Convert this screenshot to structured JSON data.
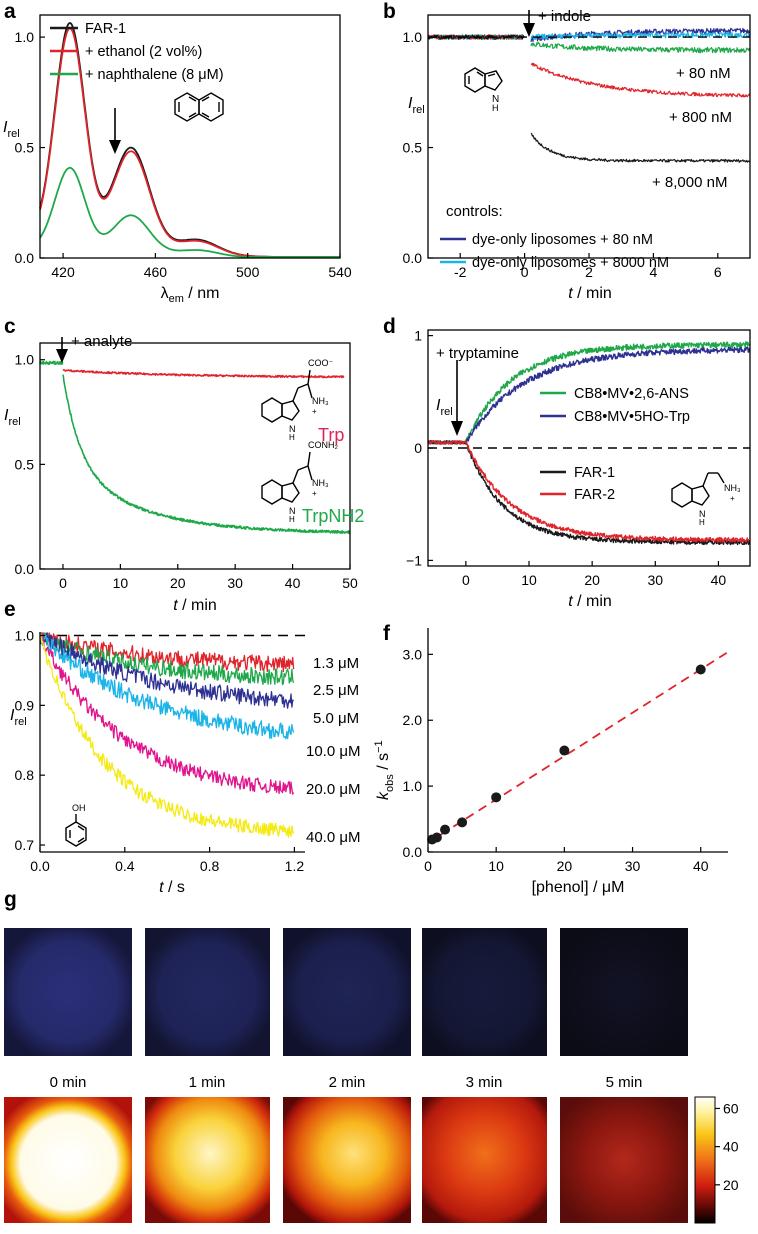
{
  "colors": {
    "black": "#1a1a1a",
    "red": "#e0242c",
    "green": "#1fa84a",
    "navy": "#2e3192",
    "cyan": "#1cb4e8",
    "magenta": "#e0148c",
    "yellow": "#f5ea14",
    "fit": "#e0242c",
    "mol_trp": "#e0245a",
    "mol_trpnh2": "#1fa84a"
  },
  "chart_data": [
    {
      "id": "a",
      "panel_label": "a",
      "type": "line",
      "xlabel": "λ",
      "xlabel_sub": "em",
      "xlabel_unit": " / nm",
      "ylabel": "I",
      "ylabel_sub": "rel",
      "xlim": [
        410,
        540
      ],
      "ylim": [
        0,
        1.1
      ],
      "xticks": [
        {
          "v": 420,
          "t": "420"
        },
        {
          "v": 460,
          "t": "460"
        },
        {
          "v": 500,
          "t": "500"
        },
        {
          "v": 540,
          "t": "540"
        }
      ],
      "yticks": [
        {
          "v": 0,
          "t": "0.0"
        },
        {
          "v": 0.5,
          "t": "0.5"
        },
        {
          "v": 1.0,
          "t": "1.0"
        }
      ],
      "series": [
        {
          "name": "FAR-1",
          "color": "black",
          "peaks": [
            {
              "c": 423,
              "w": 6.5,
              "h": 1.0
            },
            {
              "c": 449.5,
              "w": 8,
              "h": 0.47
            },
            {
              "c": 478,
              "w": 9,
              "h": 0.07
            }
          ],
          "base": 0.09
        },
        {
          "name": "+ ethanol (2 vol%)",
          "color": "red",
          "peaks": [
            {
              "c": 423,
              "w": 6.5,
              "h": 0.98
            },
            {
              "c": 449.5,
              "w": 8,
              "h": 0.455
            },
            {
              "c": 478,
              "w": 9,
              "h": 0.065
            }
          ],
          "base": 0.085
        },
        {
          "name": "+ naphthalene (8 μM)",
          "color": "green",
          "peaks": [
            {
              "c": 423,
              "w": 6.5,
              "h": 0.38
            },
            {
              "c": 449.5,
              "w": 8,
              "h": 0.18
            },
            {
              "c": 478,
              "w": 9,
              "h": 0.03
            }
          ],
          "base": 0.04
        }
      ]
    },
    {
      "id": "b",
      "panel_label": "b",
      "type": "line",
      "xlabel": "t",
      "xlabel_unit": " / min",
      "ylabel": "I",
      "ylabel_sub": "rel",
      "xlim": [
        -3,
        7
      ],
      "ylim": [
        0,
        1.1
      ],
      "xticks": [
        {
          "v": -2,
          "t": "-2"
        },
        {
          "v": 0,
          "t": "0"
        },
        {
          "v": 2,
          "t": "2"
        },
        {
          "v": 4,
          "t": "4"
        },
        {
          "v": 6,
          "t": "6"
        }
      ],
      "yticks": [
        {
          "v": 0,
          "t": "0.0"
        },
        {
          "v": 0.5,
          "t": "0.5"
        },
        {
          "v": 1.0,
          "t": "1.0"
        }
      ],
      "dashed_y": 1.0,
      "annotation": "+ indole",
      "series": [
        {
          "name": "dye-only liposomes + 80 nM",
          "color": "navy",
          "start": 0.99,
          "end": 1.03,
          "k": 0.5,
          "noise": 0.012
        },
        {
          "name": "dye-only liposomes + 8000 nM",
          "color": "cyan",
          "start": 1.0,
          "end": 1.01,
          "k": 0.5,
          "noise": 0.012
        },
        {
          "name": "+ 80 nM",
          "color": "green",
          "start": 0.97,
          "end": 0.94,
          "k": 0.6,
          "noise": 0.012
        },
        {
          "name": "+ 800 nM",
          "color": "red",
          "start": 0.88,
          "end": 0.73,
          "k": 0.5,
          "noise": 0.008
        },
        {
          "name": "+ 8,000 nM",
          "color": "black",
          "start": 0.56,
          "end": 0.44,
          "k": 1.6,
          "noise": 0.006
        }
      ],
      "controls_title": "controls:"
    },
    {
      "id": "c",
      "panel_label": "c",
      "type": "line",
      "xlabel": "t",
      "xlabel_unit": " / min",
      "ylabel": "I",
      "ylabel_sub": "rel",
      "xlim": [
        -4,
        50
      ],
      "ylim": [
        0,
        1.08
      ],
      "xticks": [
        {
          "v": 0,
          "t": "0"
        },
        {
          "v": 10,
          "t": "10"
        },
        {
          "v": 20,
          "t": "20"
        },
        {
          "v": 30,
          "t": "30"
        },
        {
          "v": 40,
          "t": "40"
        },
        {
          "v": 50,
          "t": "50"
        }
      ],
      "yticks": [
        {
          "v": 0,
          "t": "0.0"
        },
        {
          "v": 0.5,
          "t": "0.5"
        },
        {
          "v": 1.0,
          "t": "1.0"
        }
      ],
      "annotation": "+ analyte",
      "series": [
        {
          "name": "Trp",
          "color": "red",
          "start": 0.95,
          "end": 0.915,
          "k": 0.05,
          "noise": 0.004
        },
        {
          "name": "TrpNH2",
          "color": "green",
          "start": 0.93,
          "end": 0.17,
          "k": 0.08,
          "noise": 0.006
        }
      ]
    },
    {
      "id": "d",
      "panel_label": "d",
      "type": "line",
      "xlabel": "t",
      "xlabel_unit": " / min",
      "ylabel": "I",
      "ylabel_sub": "rel",
      "xlim": [
        -6,
        45
      ],
      "ylim": [
        -1.05,
        1.05
      ],
      "xticks": [
        {
          "v": 0,
          "t": "0"
        },
        {
          "v": 10,
          "t": "10"
        },
        {
          "v": 20,
          "t": "20"
        },
        {
          "v": 30,
          "t": "30"
        },
        {
          "v": 40,
          "t": "40"
        }
      ],
      "yticks": [
        {
          "v": -1,
          "t": "−1"
        },
        {
          "v": 0,
          "t": "0"
        },
        {
          "v": 1,
          "t": "1"
        }
      ],
      "dashed_y": 0,
      "annotation": "+ tryptamine",
      "series": [
        {
          "name": "CB8•MV•2,6-ANS",
          "color": "green",
          "end": 0.92,
          "k": 0.14,
          "noise": 0.025
        },
        {
          "name": "CB8•MV•5HO-Trp",
          "color": "navy",
          "end": 0.88,
          "k": 0.11,
          "noise": 0.025
        },
        {
          "name": "FAR-1",
          "color": "black",
          "end": -0.84,
          "k": 0.17,
          "noise": 0.02
        },
        {
          "name": "FAR-2",
          "color": "red",
          "end": -0.82,
          "k": 0.14,
          "noise": 0.02
        }
      ]
    },
    {
      "id": "e",
      "panel_label": "e",
      "type": "line",
      "xlabel": "t",
      "xlabel_unit": " / s",
      "ylabel": "I",
      "ylabel_sub": "rel",
      "xlim": [
        0,
        1.25
      ],
      "ylim": [
        0.69,
        1.005
      ],
      "xticks": [
        {
          "v": 0,
          "t": "0.0"
        },
        {
          "v": 0.4,
          "t": "0.4"
        },
        {
          "v": 0.8,
          "t": "0.8"
        },
        {
          "v": 1.2,
          "t": "1.2"
        }
      ],
      "yticks": [
        {
          "v": 0.7,
          "t": "0.7"
        },
        {
          "v": 0.8,
          "t": "0.8"
        },
        {
          "v": 0.9,
          "t": "0.9"
        },
        {
          "v": 1.0,
          "t": "1.0"
        }
      ],
      "dashed_y": 1.0,
      "series": [
        {
          "name": "1.3 μM",
          "color": "red",
          "end": 0.955,
          "k": 2.0,
          "noise": 0.012
        },
        {
          "name": "2.5 μM",
          "color": "green",
          "end": 0.935,
          "k": 2.2,
          "noise": 0.012
        },
        {
          "name": "5.0 μM",
          "color": "navy",
          "end": 0.895,
          "k": 1.8,
          "noise": 0.012
        },
        {
          "name": "10.0 μM",
          "color": "cyan",
          "end": 0.845,
          "k": 1.9,
          "noise": 0.012
        },
        {
          "name": "20.0 μM",
          "color": "magenta",
          "end": 0.77,
          "k": 2.6,
          "noise": 0.01
        },
        {
          "name": "40.0 μM",
          "color": "yellow",
          "end": 0.715,
          "k": 3.3,
          "noise": 0.01
        }
      ]
    },
    {
      "id": "f",
      "panel_label": "f",
      "type": "scatter",
      "xlabel": "[phenol] / μM",
      "ylabel": "k",
      "ylabel_sub": "obs",
      "ylabel_unit": " / s",
      "ylabel_sup": "−1",
      "xlim": [
        0,
        44
      ],
      "ylim": [
        0,
        3.4
      ],
      "xticks": [
        {
          "v": 0,
          "t": "0"
        },
        {
          "v": 10,
          "t": "10"
        },
        {
          "v": 20,
          "t": "20"
        },
        {
          "v": 30,
          "t": "30"
        },
        {
          "v": 40,
          "t": "40"
        }
      ],
      "yticks": [
        {
          "v": 0,
          "t": "0.0"
        },
        {
          "v": 1,
          "t": "1.0"
        },
        {
          "v": 2,
          "t": "2.0"
        },
        {
          "v": 3,
          "t": "3.0"
        }
      ],
      "points": [
        {
          "x": 0.6,
          "y": 0.19
        },
        {
          "x": 1.3,
          "y": 0.22
        },
        {
          "x": 2.5,
          "y": 0.34
        },
        {
          "x": 5.0,
          "y": 0.45
        },
        {
          "x": 10,
          "y": 0.83
        },
        {
          "x": 20,
          "y": 1.54
        },
        {
          "x": 40,
          "y": 2.77
        }
      ],
      "fit": {
        "slope": 0.0658,
        "intercept": 0.14
      }
    }
  ],
  "panel_g": {
    "label": "g",
    "times": [
      "0 min",
      "1 min",
      "2 min",
      "3 min",
      "5 min"
    ],
    "colorbar_ticks": [
      {
        "v": 20,
        "t": "20"
      },
      {
        "v": 40,
        "t": "40"
      },
      {
        "v": 60,
        "t": "60"
      }
    ],
    "intensities": [
      62,
      52,
      46,
      28,
      12
    ]
  }
}
